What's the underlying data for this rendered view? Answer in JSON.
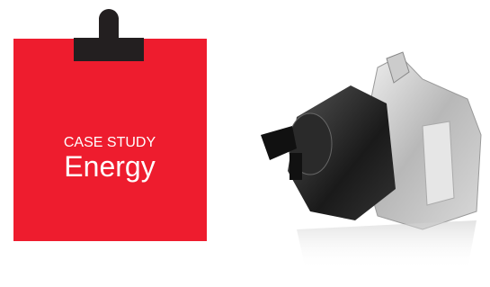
{
  "card": {
    "eyebrow": "CASE STUDY",
    "title": "Energy"
  }
}
